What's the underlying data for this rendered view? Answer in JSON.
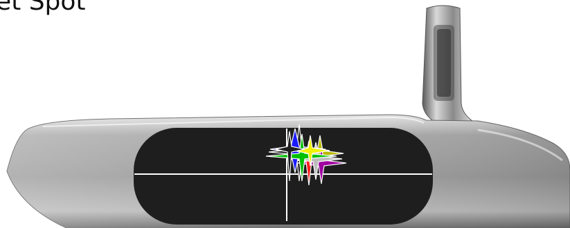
{
  "title": "et Spot",
  "colors": {
    "face": "#1e1e1e",
    "guide_lines": "#ffffff",
    "markers": [
      "#ffffff",
      "#1a1aff",
      "#00c000",
      "#c0c000",
      "#a000a0",
      "#ff2020",
      "#bbbbbb",
      "#ffff00"
    ]
  },
  "icons": [
    "putter-head-illustration",
    "impact-star-markers"
  ]
}
